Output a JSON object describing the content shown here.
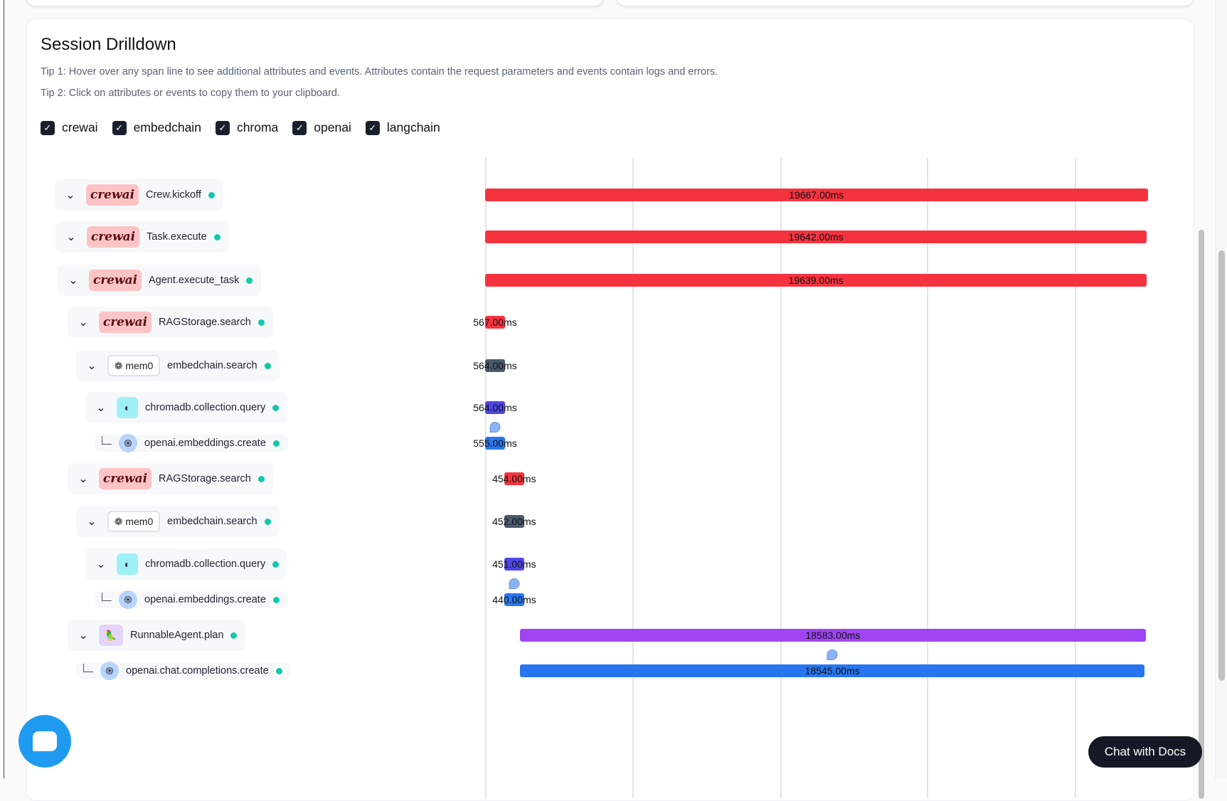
{
  "title": "Session Drilldown",
  "tips": [
    "Tip 1: Hover over any span line to see additional attributes and events. Attributes contain the request parameters and events contain logs and errors.",
    "Tip 2: Click on attributes or events to copy them to your clipboard."
  ],
  "filters": [
    {
      "label": "crewai",
      "checked": true
    },
    {
      "label": "embedchain",
      "checked": true
    },
    {
      "label": "chroma",
      "checked": true
    },
    {
      "label": "openai",
      "checked": true
    },
    {
      "label": "langchain",
      "checked": true
    }
  ],
  "colors": {
    "crewai": "#f5333f",
    "embedchain": "#4b5a6e",
    "chroma": "#4f46e5",
    "openai": "#2776f0",
    "langchain": "#9f44f2",
    "status_ok": "#10c9a8"
  },
  "spans": [
    {
      "name": "Crew.kickoff",
      "provider": "crewai",
      "logo": "crewai",
      "expandable": true,
      "start_ms": 0,
      "duration_ms": 19667,
      "label": "19667.00ms"
    },
    {
      "name": "Task.execute",
      "provider": "crewai",
      "logo": "crewai",
      "expandable": true,
      "start_ms": 0,
      "duration_ms": 19642,
      "label": "19642.00ms"
    },
    {
      "name": "Agent.execute_task",
      "provider": "crewai",
      "logo": "crewai",
      "expandable": true,
      "start_ms": 0,
      "duration_ms": 19639,
      "label": "19639.00ms"
    },
    {
      "name": "RAGStorage.search",
      "provider": "crewai",
      "logo": "crewai",
      "expandable": true,
      "start_ms": 0,
      "duration_ms": 567,
      "label": "567.00ms"
    },
    {
      "name": "embedchain.search",
      "provider": "embedchain",
      "logo": "mem0",
      "expandable": true,
      "start_ms": 0,
      "duration_ms": 564,
      "label": "564.00ms"
    },
    {
      "name": "chromadb.collection.query",
      "provider": "chroma",
      "logo": "chroma",
      "expandable": true,
      "start_ms": 0,
      "duration_ms": 564,
      "label": "564.00ms"
    },
    {
      "name": "openai.embeddings.create",
      "provider": "openai",
      "logo": "openai",
      "expandable": false,
      "start_ms": 0,
      "duration_ms": 555,
      "label": "555.00ms",
      "event": true
    },
    {
      "name": "RAGStorage.search",
      "provider": "crewai",
      "logo": "crewai",
      "expandable": true,
      "start_ms": 567,
      "duration_ms": 454,
      "label": "454.00ms"
    },
    {
      "name": "embedchain.search",
      "provider": "embedchain",
      "logo": "mem0",
      "expandable": true,
      "start_ms": 567,
      "duration_ms": 452,
      "label": "452.00ms"
    },
    {
      "name": "chromadb.collection.query",
      "provider": "chroma",
      "logo": "chroma",
      "expandable": true,
      "start_ms": 567,
      "duration_ms": 451,
      "label": "451.00ms"
    },
    {
      "name": "openai.embeddings.create",
      "provider": "openai",
      "logo": "openai",
      "expandable": false,
      "start_ms": 570,
      "duration_ms": 440,
      "label": "440.00ms",
      "event": true
    },
    {
      "name": "RunnableAgent.plan",
      "provider": "langchain",
      "logo": "langchain",
      "expandable": true,
      "start_ms": 1030,
      "duration_ms": 18583,
      "label": "18583.00ms"
    },
    {
      "name": "openai.chat.completions.create",
      "provider": "openai",
      "logo": "openai",
      "expandable": false,
      "start_ms": 1035,
      "duration_ms": 18545,
      "label": "18545.00ms",
      "event": true
    }
  ],
  "logos": {
    "crewai": "crewai",
    "mem0": "mem0"
  },
  "chat_button": "Chat with Docs"
}
